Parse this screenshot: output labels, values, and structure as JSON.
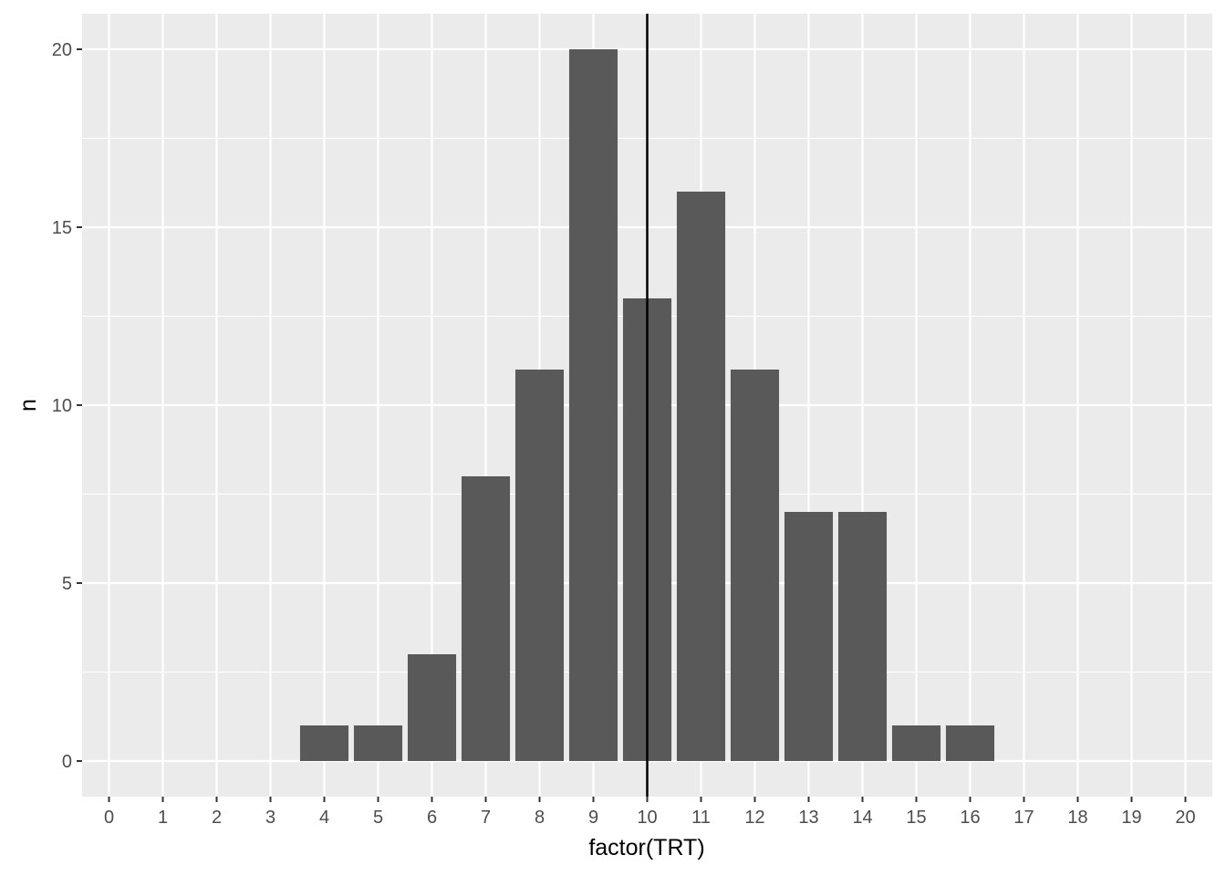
{
  "chart_data": {
    "type": "bar",
    "title": "",
    "xlabel": "factor(TRT)",
    "ylabel": "n",
    "categories": [
      "0",
      "1",
      "2",
      "3",
      "4",
      "5",
      "6",
      "7",
      "8",
      "9",
      "10",
      "11",
      "12",
      "13",
      "14",
      "15",
      "16",
      "17",
      "18",
      "19",
      "20"
    ],
    "values": [
      0,
      0,
      0,
      0,
      1,
      1,
      3,
      8,
      11,
      20,
      13,
      16,
      11,
      7,
      7,
      1,
      1,
      0,
      0,
      0,
      0
    ],
    "ylim": [
      -1,
      21
    ],
    "yticks": [
      0,
      5,
      10,
      15,
      20
    ],
    "vline": {
      "x": "10"
    },
    "grid": true,
    "legend": "none",
    "colors": {
      "bar": "#595959",
      "panel": "#ebebeb",
      "grid": "#ffffff",
      "vline": "#000000"
    }
  }
}
